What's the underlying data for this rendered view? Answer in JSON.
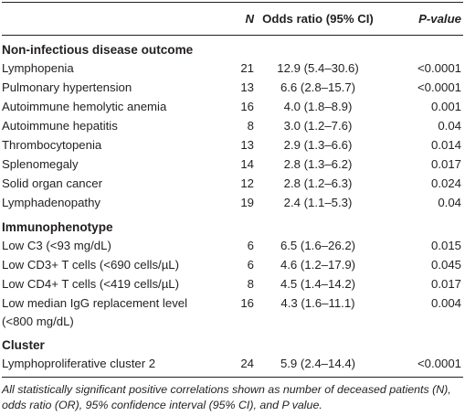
{
  "table": {
    "header": {
      "n": "N",
      "odds_ratio": "Odds ratio (95% CI)",
      "p_value": "P-value"
    },
    "groups": [
      {
        "title": "Non-infectious disease outcome",
        "rows": [
          [
            "Lymphopenia",
            21,
            "12.9 (5.4–30.6)",
            "<0.0001"
          ],
          [
            "Pulmonary hypertension",
            13,
            "6.6 (2.8–15.7)",
            "<0.0001"
          ],
          [
            "Autoimmune hemolytic anemia",
            16,
            "4.0 (1.8–8.9)",
            "0.001"
          ],
          [
            "Autoimmune hepatitis",
            8,
            "3.0 (1.2–7.6)",
            "0.04"
          ],
          [
            "Thrombocytopenia",
            13,
            "2.9 (1.3–6.6)",
            "0.014"
          ],
          [
            "Splenomegaly",
            14,
            "2.8 (1.3–6.2)",
            "0.017"
          ],
          [
            "Solid organ cancer",
            12,
            "2.8 (1.2–6.3)",
            "0.024"
          ],
          [
            "Lymphadenopathy",
            19,
            "2.4 (1.1–5.3)",
            "0.04"
          ]
        ]
      },
      {
        "title": "Immunophenotype",
        "rows": [
          [
            "Low C3 (<93 mg/dL)",
            6,
            "6.5 (1.6–26.2)",
            "0.015"
          ],
          [
            "Low CD3+ T cells (<690 cells/µL)",
            6,
            "4.6 (1.2–17.9)",
            "0.045"
          ],
          [
            "Low CD4+ T cells (<419 cells/µL)",
            8,
            "4.5 (1.4–14.2)",
            "0.017"
          ],
          [
            "Low median IgG replacement level (<800 mg/dL)",
            16,
            "4.3 (1.6–11.1)",
            "0.004"
          ]
        ]
      },
      {
        "title": "Cluster",
        "rows": [
          [
            "Lymphoproliferative cluster 2",
            24,
            "5.9 (2.4–14.4)",
            "<0.0001"
          ]
        ]
      }
    ],
    "footnote": "All statistically significant positive correlations shown as number of deceased patients (N), odds ratio (OR), 95% confidence interval (95% CI), and P value."
  }
}
